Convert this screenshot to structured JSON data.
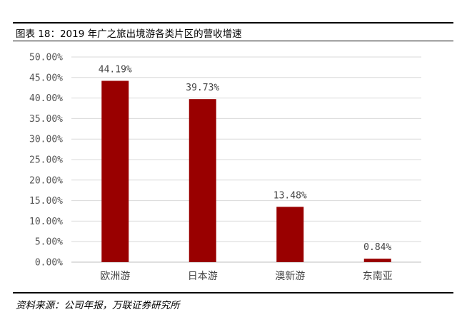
{
  "figure": {
    "title": "图表 18：2019 年广之旅出境游各类片区的营收增速",
    "source": "资料来源：公司年报，万联证券研究所"
  },
  "chart_data": {
    "type": "bar",
    "categories": [
      "欧洲游",
      "日本游",
      "澳新游",
      "东南亚"
    ],
    "values": [
      44.19,
      39.73,
      13.48,
      0.84
    ],
    "data_labels": [
      "44.19%",
      "39.73%",
      "13.48%",
      "0.84%"
    ],
    "y_ticks": [
      "0.00%",
      "5.00%",
      "10.00%",
      "15.00%",
      "20.00%",
      "25.00%",
      "30.00%",
      "35.00%",
      "40.00%",
      "45.00%",
      "50.00%"
    ],
    "ylim": [
      0,
      50
    ],
    "y_unit": "%",
    "grid": true,
    "bar_color": "#990000",
    "grid_color": "#d9d9d9"
  }
}
